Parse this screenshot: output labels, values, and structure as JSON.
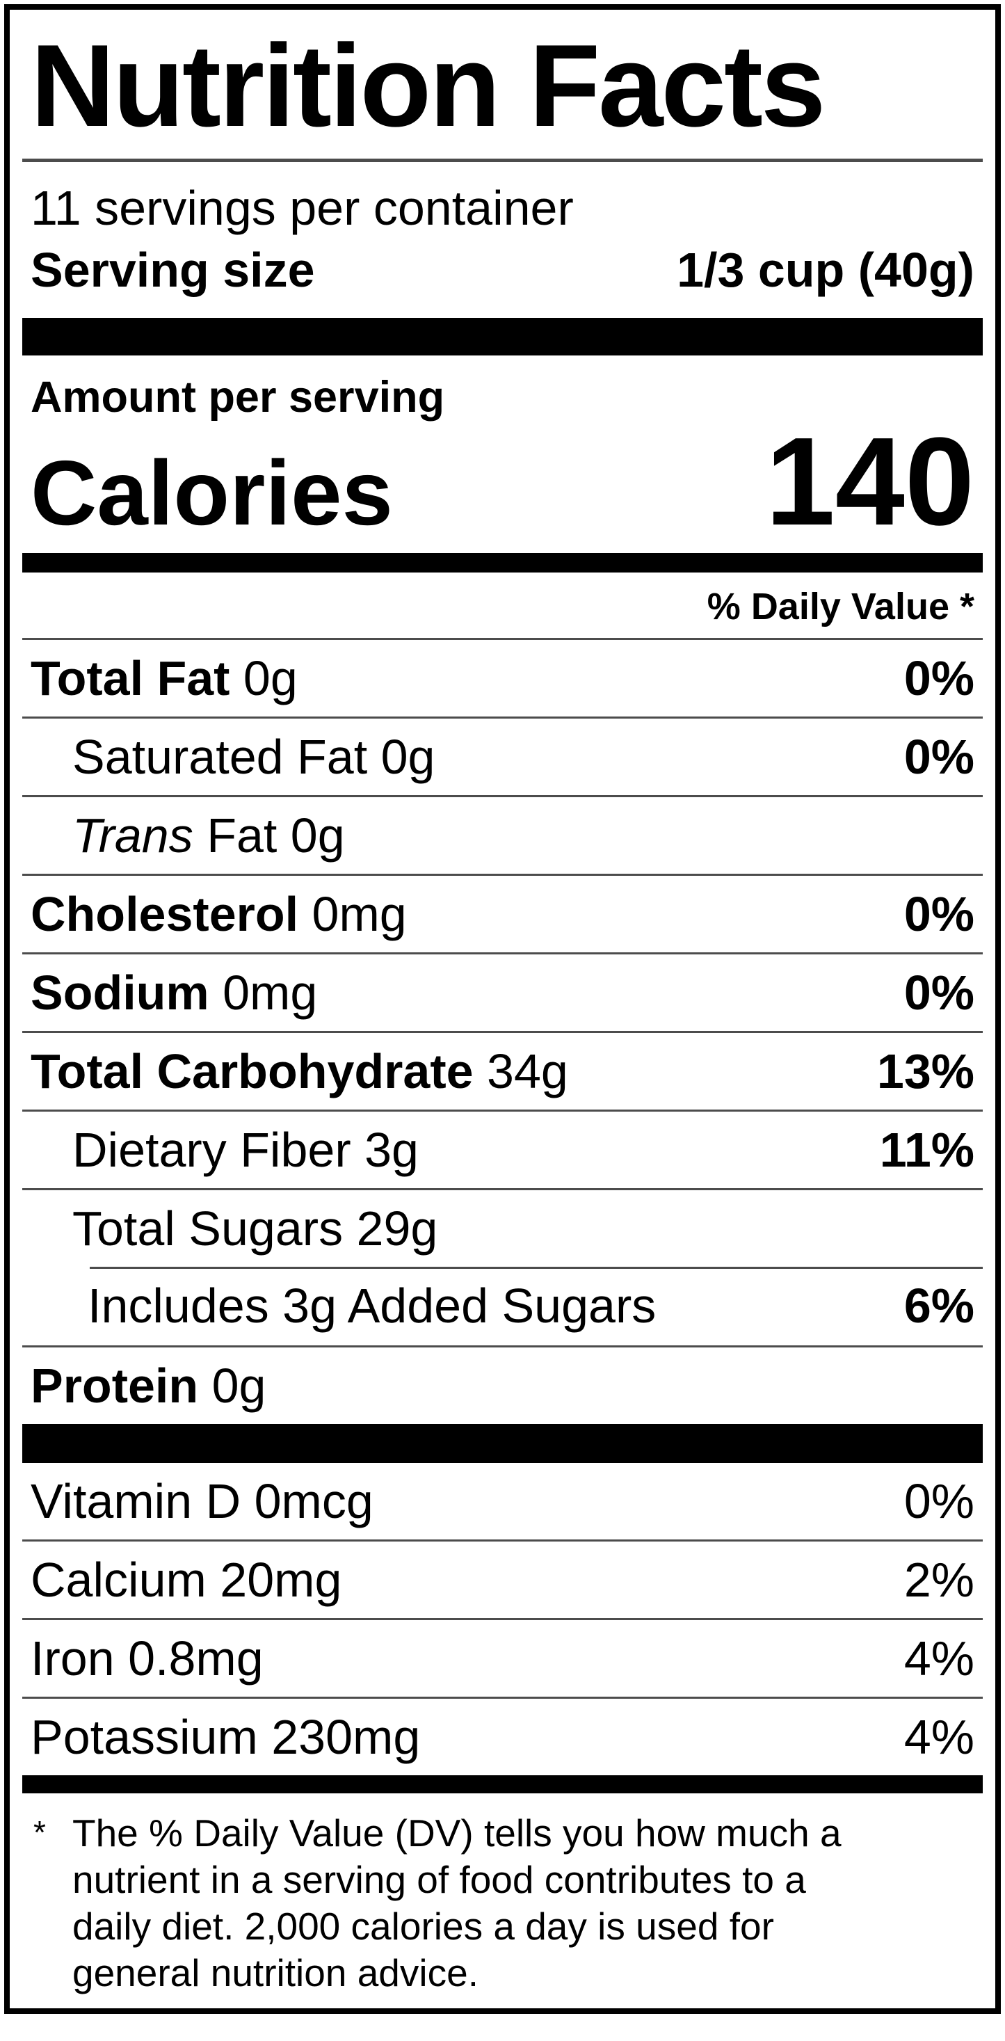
{
  "label": {
    "title": "Nutrition Facts",
    "servings_per_container": "11 servings per container",
    "serving_size": {
      "label": "Serving size",
      "value": "1/3 cup (40g)"
    },
    "amount_per_serving": "Amount per serving",
    "calories": {
      "label": "Calories",
      "value": "140"
    },
    "daily_value_header": "% Daily Value *",
    "nutrients": [
      {
        "it": "",
        "name": "Total Fat",
        "rest": " 0g",
        "dv": "0%"
      },
      {
        "it": "",
        "name": "",
        "rest": "Saturated Fat 0g",
        "dv": "0%"
      },
      {
        "it": "Trans",
        "name": "",
        "rest": " Fat 0g",
        "dv": ""
      },
      {
        "it": "",
        "name": "Cholesterol",
        "rest": " 0mg",
        "dv": "0%"
      },
      {
        "it": "",
        "name": "Sodium",
        "rest": " 0mg",
        "dv": "0%"
      },
      {
        "it": "",
        "name": "Total Carbohydrate",
        "rest": " 34g",
        "dv": "13%"
      },
      {
        "it": "",
        "name": "",
        "rest": "Dietary Fiber 3g",
        "dv": "11%"
      },
      {
        "it": "",
        "name": "",
        "rest": "Total Sugars 29g",
        "dv": ""
      },
      {
        "it": "",
        "name": "",
        "rest": "Includes 3g Added Sugars",
        "dv": "6%"
      },
      {
        "it": "",
        "name": "Protein",
        "rest": " 0g",
        "dv": ""
      }
    ],
    "vitamins": [
      {
        "name": "Vitamin D 0mcg",
        "dv": "0%"
      },
      {
        "name": "Calcium 20mg",
        "dv": "2%"
      },
      {
        "name": "Iron 0.8mg",
        "dv": "4%"
      },
      {
        "name": "Potassium 230mg",
        "dv": "4%"
      }
    ],
    "footnote_star": "*",
    "footnote": "The % Daily Value (DV) tells you how much a\nnutrient in a serving of food contributes to a\ndaily diet. 2,000 calories a day is used for\ngeneral nutrition advice.",
    "colors": {
      "text": "#000000",
      "rule": "#4c4c4c",
      "bar": "#000000",
      "background": "#ffffff"
    }
  }
}
